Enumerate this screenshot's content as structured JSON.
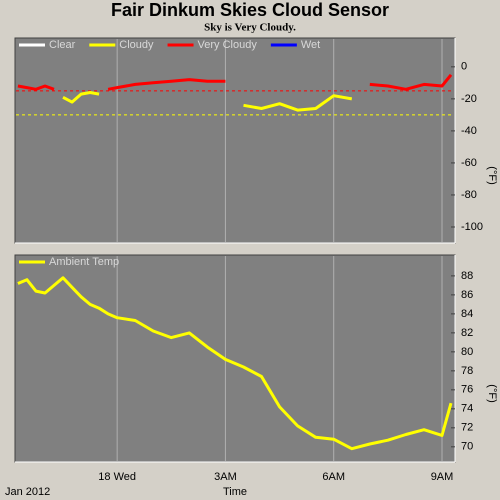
{
  "chart_data": [
    {
      "type": "line",
      "title": "Fair Dinkum Skies Cloud Sensor",
      "subtitle": "Sky is Very Cloudy.",
      "x": [
        -2.75,
        -2.5,
        -2.25,
        -2,
        -1.75,
        -1.5,
        -1.25,
        -1,
        -0.75,
        -0.5,
        -0.25,
        0,
        0.5,
        1,
        1.5,
        2,
        2.5,
        3,
        3.5,
        4,
        4.5,
        5,
        5.5,
        6,
        6.5,
        7,
        7.5,
        8,
        8.5,
        9,
        9.25
      ],
      "series": [
        {
          "name": "Clear",
          "color": "#ffffff",
          "values": [
            null,
            null,
            null,
            null,
            null,
            null,
            null,
            null,
            null,
            null,
            null,
            null,
            null,
            null,
            null,
            null,
            null,
            null,
            null,
            null,
            null,
            null,
            null,
            null,
            null,
            null,
            null,
            null,
            null,
            null,
            null
          ]
        },
        {
          "name": "Cloudy",
          "color": "#ffff00",
          "values": [
            null,
            null,
            null,
            null,
            null,
            -19,
            -22,
            -17,
            -16,
            -17,
            null,
            null,
            null,
            null,
            null,
            null,
            null,
            null,
            -24,
            -26,
            -23,
            -27,
            -26,
            -18,
            -20,
            null,
            null,
            null,
            null,
            null,
            null
          ]
        },
        {
          "name": "Very Cloudy",
          "color": "#ff0000",
          "values": [
            -12,
            -13,
            -14,
            -12,
            -14,
            null,
            null,
            null,
            null,
            null,
            -14,
            -13,
            -11,
            -10,
            -9,
            -8,
            -9,
            -9,
            null,
            null,
            null,
            null,
            null,
            null,
            null,
            -11,
            -12,
            -14,
            -11,
            -12,
            -5
          ]
        },
        {
          "name": "Wet",
          "color": "#0000ff",
          "values": [
            null,
            null,
            null,
            null,
            null,
            null,
            null,
            null,
            null,
            null,
            null,
            null,
            null,
            null,
            null,
            null,
            null,
            null,
            null,
            null,
            null,
            null,
            null,
            null,
            null,
            null,
            null,
            null,
            null,
            null,
            null
          ]
        }
      ],
      "reference_lines": [
        {
          "value": -15,
          "color": "#ff0000"
        },
        {
          "value": -30,
          "color": "#ffff00"
        }
      ],
      "xlim": [
        -2.83,
        9.36
      ],
      "xticks": [
        {
          "value": 0,
          "label": "18 Wed"
        },
        {
          "value": 3,
          "label": "3AM"
        },
        {
          "value": 6,
          "label": "6AM"
        },
        {
          "value": 9,
          "label": "9AM"
        }
      ],
      "ylim": [
        -110,
        18
      ],
      "yticks": [
        0,
        -20,
        -40,
        -60,
        -80,
        -100
      ],
      "ylabel": "(°F)",
      "grid": "x"
    },
    {
      "type": "line",
      "x": [
        -2.75,
        -2.5,
        -2.25,
        -2,
        -1.75,
        -1.5,
        -1.25,
        -1,
        -0.75,
        -0.5,
        -0.25,
        0,
        0.5,
        1,
        1.5,
        2,
        2.5,
        3,
        3.5,
        4,
        4.5,
        5,
        5.5,
        6,
        6.5,
        7,
        7.5,
        8,
        8.5,
        9,
        9.25
      ],
      "series": [
        {
          "name": "Ambient Temp",
          "color": "#ffff00",
          "values": [
            87.2,
            87.6,
            86.4,
            86.2,
            87.0,
            87.8,
            86.8,
            85.8,
            85.0,
            84.6,
            84.0,
            83.6,
            83.3,
            82.2,
            81.5,
            82.0,
            80.5,
            79.2,
            78.4,
            77.4,
            74.2,
            72.2,
            71.0,
            70.8,
            69.8,
            70.3,
            70.7,
            71.3,
            71.8,
            71.2,
            74.6
          ]
        }
      ],
      "xlim": [
        -2.83,
        9.36
      ],
      "xticks": [
        {
          "value": 0,
          "label": "18 Wed"
        },
        {
          "value": 3,
          "label": "3AM"
        },
        {
          "value": 6,
          "label": "6AM"
        },
        {
          "value": 9,
          "label": "9AM"
        }
      ],
      "ylim": [
        68.4,
        90.2
      ],
      "yticks": [
        88,
        86,
        84,
        82,
        80,
        78,
        76,
        74,
        72,
        70
      ],
      "ylabel": "(°F)",
      "xlabel": "Time",
      "xnote": "Jan 2012",
      "grid": "x"
    }
  ]
}
